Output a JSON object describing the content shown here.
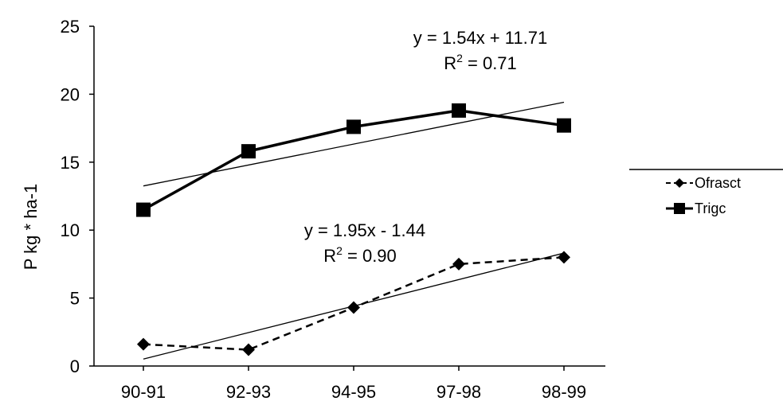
{
  "chart_data": {
    "type": "line",
    "categories": [
      "90-91",
      "92-93",
      "94-95",
      "97-98",
      "98-99"
    ],
    "ylabel": "P  kg * ha-1",
    "ylim": [
      0,
      25
    ],
    "yticks": [
      0,
      5,
      10,
      15,
      20,
      25
    ],
    "grid": false,
    "legend_position": "right",
    "series": [
      {
        "name": "Ofrasct",
        "values": [
          1.6,
          1.2,
          4.3,
          7.5,
          8.0
        ],
        "marker": "diamond",
        "line_style": "dashed",
        "color": "#000000",
        "trendline": {
          "slope": 1.95,
          "intercept": -1.44,
          "equation": "y = 1.95x  - 1.44",
          "r2_label": "R",
          "r2_sup": "2",
          "r2_value": " = 0.90"
        }
      },
      {
        "name": "Trigc",
        "values": [
          11.5,
          15.8,
          17.6,
          18.8,
          17.7
        ],
        "marker": "square",
        "line_style": "solid",
        "color": "#000000",
        "trendline": {
          "slope": 1.54,
          "intercept": 11.71,
          "equation": "y = 1.54x  + 11.71",
          "r2_label": "R",
          "r2_sup": "2",
          "r2_value": " = 0.71"
        }
      }
    ]
  }
}
